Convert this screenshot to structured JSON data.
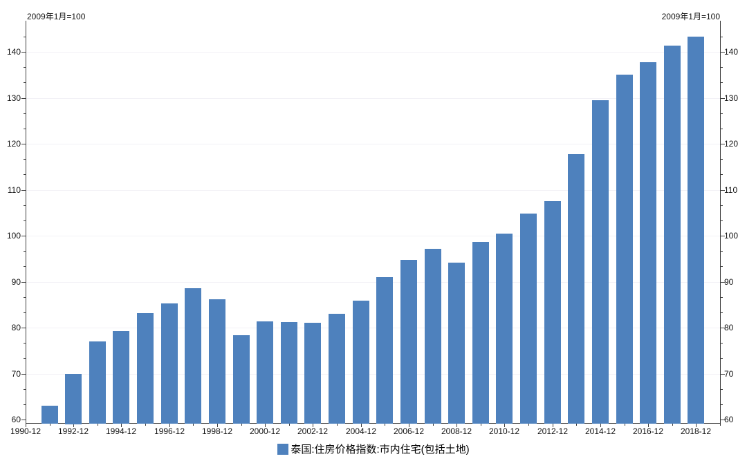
{
  "header": {
    "left_note": "2009年1月=100",
    "right_note": "2009年1月=100"
  },
  "legend": {
    "label": "泰国:住房价格指数:市内住宅(包括土地)"
  },
  "chart_data": {
    "type": "bar",
    "title": "",
    "series_name": "泰国:住房价格指数:市内住宅(包括土地)",
    "unit_note": "2009年1月=100",
    "categories": [
      "1991-12",
      "1992-12",
      "1993-12",
      "1994-12",
      "1995-12",
      "1996-12",
      "1997-12",
      "1998-12",
      "1999-12",
      "2000-12",
      "2001-12",
      "2002-12",
      "2003-12",
      "2004-12",
      "2005-12",
      "2006-12",
      "2007-12",
      "2008-12",
      "2009-12",
      "2010-12",
      "2011-12",
      "2012-12",
      "2013-12",
      "2014-12",
      "2015-12",
      "2016-12",
      "2017-12",
      "2018-12"
    ],
    "values": [
      63.0,
      70.0,
      77.0,
      79.2,
      83.2,
      85.3,
      88.6,
      86.1,
      78.3,
      81.3,
      81.2,
      81.1,
      83.0,
      85.8,
      91.0,
      94.8,
      97.2,
      94.1,
      98.6,
      100.5,
      104.8,
      107.5,
      117.8,
      129.5,
      135.1,
      137.7,
      141.3,
      143.3
    ],
    "x_axis": {
      "tick_years": [
        "1990-12",
        "1991-12",
        "1992-12",
        "1993-12",
        "1994-12",
        "1995-12",
        "1996-12",
        "1997-12",
        "1998-12",
        "1999-12",
        "2000-12",
        "2001-12",
        "2002-12",
        "2003-12",
        "2004-12",
        "2005-12",
        "2006-12",
        "2007-12",
        "2008-12",
        "2009-12",
        "2010-12",
        "2011-12",
        "2012-12",
        "2013-12",
        "2014-12",
        "2015-12",
        "2016-12",
        "2017-12",
        "2018-12",
        "2019-12"
      ],
      "labeled_ticks": [
        "1990-12",
        "1992-12",
        "1994-12",
        "1996-12",
        "1998-12",
        "2000-12",
        "2002-12",
        "2004-12",
        "2006-12",
        "2008-12",
        "2010-12",
        "2012-12",
        "2014-12",
        "2016-12",
        "2018-12"
      ]
    },
    "y_axis": {
      "min": 60,
      "max": 146,
      "ticks": [
        60,
        70,
        80,
        90,
        100,
        110,
        120,
        130,
        140
      ],
      "dual_axis": true,
      "minor_ticks_per_interval": 2
    },
    "grid": "horizontal",
    "legend_position": "bottom-center",
    "colors": {
      "bar": "#4e81bd",
      "grid": "#f2f1f6",
      "axis": "#3c3c3c",
      "text": "#111111"
    }
  }
}
